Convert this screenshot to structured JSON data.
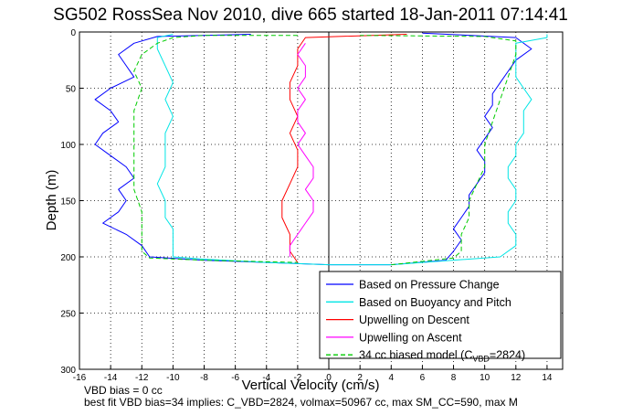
{
  "chart_data": {
    "type": "line",
    "title": "SG502 RossSea Nov 2010, dive 665 started 18-Jan-2011 07:14:41",
    "xlabel": "Vertical Velocity (cm/s)",
    "ylabel": "Depth (m)",
    "xlim": [
      -16,
      15
    ],
    "ylim": [
      300,
      0
    ],
    "y_reversed": true,
    "grid": true,
    "legend_position": "bottom-right",
    "x_ticks": [
      "-16",
      "-14",
      "-12",
      "-10",
      "-8",
      "-6",
      "-4",
      "-2",
      "0",
      "2",
      "4",
      "6",
      "8",
      "10",
      "12",
      "14"
    ],
    "y_ticks": [
      "0",
      "50",
      "100",
      "150",
      "200",
      "250",
      "300"
    ],
    "series": [
      {
        "name": "Based on Pressure Change",
        "color": "#0000ff",
        "style": "solid",
        "points": [
          [
            [
              -5,
              2
            ],
            [
              -11,
              4
            ],
            [
              -12.5,
              10
            ],
            [
              -13.5,
              20
            ],
            [
              -13,
              30
            ],
            [
              -12.5,
              40
            ],
            [
              -14,
              50
            ],
            [
              -15,
              60
            ],
            [
              -14,
              70
            ],
            [
              -13.5,
              80
            ],
            [
              -14.5,
              90
            ],
            [
              -15,
              100
            ],
            [
              -14,
              110
            ],
            [
              -13,
              120
            ],
            [
              -12.5,
              130
            ],
            [
              -13.5,
              140
            ],
            [
              -13,
              150
            ],
            [
              -13.5,
              160
            ],
            [
              -14.5,
              170
            ],
            [
              -13,
              180
            ],
            [
              -12,
              190
            ],
            [
              -11.5,
              200
            ],
            [
              -8,
              203
            ],
            [
              -4,
              205
            ],
            [
              0,
              207
            ],
            [
              4,
              207
            ]
          ],
          [
            [
              4,
              207
            ],
            [
              7.5,
              203
            ],
            [
              8,
              195
            ],
            [
              8.5,
              185
            ],
            [
              8,
              175
            ],
            [
              8.5,
              165
            ],
            [
              9,
              155
            ],
            [
              9,
              145
            ],
            [
              9.5,
              135
            ],
            [
              10,
              125
            ],
            [
              10,
              115
            ],
            [
              9.5,
              105
            ],
            [
              10,
              95
            ],
            [
              10.5,
              85
            ],
            [
              10,
              75
            ],
            [
              10.5,
              65
            ],
            [
              10.5,
              55
            ],
            [
              11,
              45
            ],
            [
              11.5,
              35
            ],
            [
              12,
              25
            ],
            [
              13,
              15
            ],
            [
              12,
              5
            ],
            [
              6,
              1
            ]
          ]
        ]
      },
      {
        "name": "Based on Buoyancy and Pitch",
        "color": "#00e5e5",
        "style": "solid",
        "points": [
          [
            [
              -10,
              2
            ],
            [
              -11,
              5
            ],
            [
              -11,
              15
            ],
            [
              -10.5,
              30
            ],
            [
              -10,
              45
            ],
            [
              -10.5,
              60
            ],
            [
              -10,
              75
            ],
            [
              -10.5,
              90
            ],
            [
              -10.5,
              105
            ],
            [
              -10.5,
              120
            ],
            [
              -11,
              135
            ],
            [
              -10.5,
              150
            ],
            [
              -10.5,
              165
            ],
            [
              -10,
              175
            ],
            [
              -10,
              185
            ],
            [
              -10,
              195
            ],
            [
              -10,
              200
            ],
            [
              -8,
              202
            ],
            [
              -4,
              205
            ],
            [
              0,
              207
            ],
            [
              4,
              207
            ]
          ],
          [
            [
              4,
              207
            ],
            [
              11,
              200
            ],
            [
              12,
              190
            ],
            [
              12,
              180
            ],
            [
              11.5,
              170
            ],
            [
              11.5,
              160
            ],
            [
              12,
              150
            ],
            [
              12,
              140
            ],
            [
              11.5,
              130
            ],
            [
              11.5,
              120
            ],
            [
              12,
              110
            ],
            [
              12,
              100
            ],
            [
              12.5,
              90
            ],
            [
              12.5,
              80
            ],
            [
              12.5,
              70
            ],
            [
              13,
              60
            ],
            [
              12.5,
              50
            ],
            [
              12,
              40
            ],
            [
              12,
              30
            ],
            [
              12,
              20
            ],
            [
              12,
              10
            ],
            [
              14,
              5
            ],
            [
              14,
              2
            ]
          ]
        ]
      },
      {
        "name": "Upwelling on Descent",
        "color": "#ff0000",
        "style": "solid",
        "points": [
          [
            [
              5,
              2
            ],
            [
              -1.5,
              5
            ],
            [
              -2,
              15
            ],
            [
              -2,
              30
            ],
            [
              -2.5,
              45
            ],
            [
              -2.5,
              60
            ],
            [
              -2,
              75
            ],
            [
              -2.5,
              90
            ],
            [
              -2,
              105
            ],
            [
              -2,
              120
            ],
            [
              -2.5,
              135
            ],
            [
              -3,
              150
            ],
            [
              -3,
              165
            ],
            [
              -2.5,
              180
            ],
            [
              -2.5,
              195
            ],
            [
              -2,
              205
            ]
          ]
        ]
      },
      {
        "name": "Upwelling on Ascent",
        "color": "#ff00ff",
        "style": "solid",
        "points": [
          [
            [
              -1.5,
              10
            ],
            [
              -2,
              20
            ],
            [
              -1.5,
              30
            ],
            [
              -1.5,
              40
            ],
            [
              -2,
              50
            ],
            [
              -1.5,
              60
            ],
            [
              -2,
              70
            ],
            [
              -2,
              80
            ],
            [
              -1.5,
              90
            ],
            [
              -2,
              100
            ],
            [
              -1.5,
              110
            ],
            [
              -1,
              120
            ],
            [
              -1,
              130
            ],
            [
              -1.5,
              140
            ],
            [
              -1,
              150
            ],
            [
              -1,
              160
            ],
            [
              -1.5,
              170
            ],
            [
              -2,
              180
            ],
            [
              -2.5,
              190
            ],
            [
              -2.5,
              200
            ]
          ]
        ]
      },
      {
        "name": "34 cc biased model (C_VBD=2824)",
        "color": "#00cc00",
        "style": "dashed",
        "points": [
          [
            [
              -2,
              3
            ],
            [
              -8,
              3
            ],
            [
              -10,
              5
            ],
            [
              -11,
              10
            ],
            [
              -12,
              20
            ],
            [
              -12.5,
              35
            ],
            [
              -12,
              50
            ],
            [
              -12.5,
              70
            ],
            [
              -12.5,
              90
            ],
            [
              -12.5,
              100
            ],
            [
              -12.5,
              120
            ],
            [
              -12.5,
              140
            ],
            [
              -12,
              160
            ],
            [
              -12,
              180
            ],
            [
              -12,
              195
            ],
            [
              -11.5,
              201
            ],
            [
              -8,
              203
            ],
            [
              -2,
              205
            ]
          ],
          [
            [
              4,
              207
            ],
            [
              8,
              201
            ],
            [
              8.5,
              195
            ],
            [
              8.5,
              180
            ],
            [
              9,
              165
            ],
            [
              9,
              150
            ],
            [
              9.5,
              135
            ],
            [
              10,
              120
            ],
            [
              10,
              100
            ],
            [
              10.5,
              80
            ],
            [
              11,
              60
            ],
            [
              11.5,
              40
            ],
            [
              12,
              20
            ],
            [
              12,
              8
            ],
            [
              10,
              4
            ],
            [
              2,
              3
            ]
          ]
        ]
      }
    ],
    "annotations": [
      "VBD bias = 0 cc",
      "best fit VBD bias=34 implies: C_VBD=2824, volmax=50967 cc, max SM_CC=590, max M"
    ]
  },
  "legend": {
    "entries": [
      {
        "label": "Based on Pressure Change",
        "color": "#0000ff",
        "dashed": false
      },
      {
        "label": "Based on Buoyancy and Pitch",
        "color": "#00e5e5",
        "dashed": false
      },
      {
        "label": "Upwelling on Descent",
        "color": "#ff0000",
        "dashed": false
      },
      {
        "label": "Upwelling on Ascent",
        "color": "#ff00ff",
        "dashed": false
      },
      {
        "label": "34 cc biased model (C",
        "sub": "VBD",
        "tail": "=2824)",
        "color": "#00cc00",
        "dashed": true
      }
    ]
  }
}
